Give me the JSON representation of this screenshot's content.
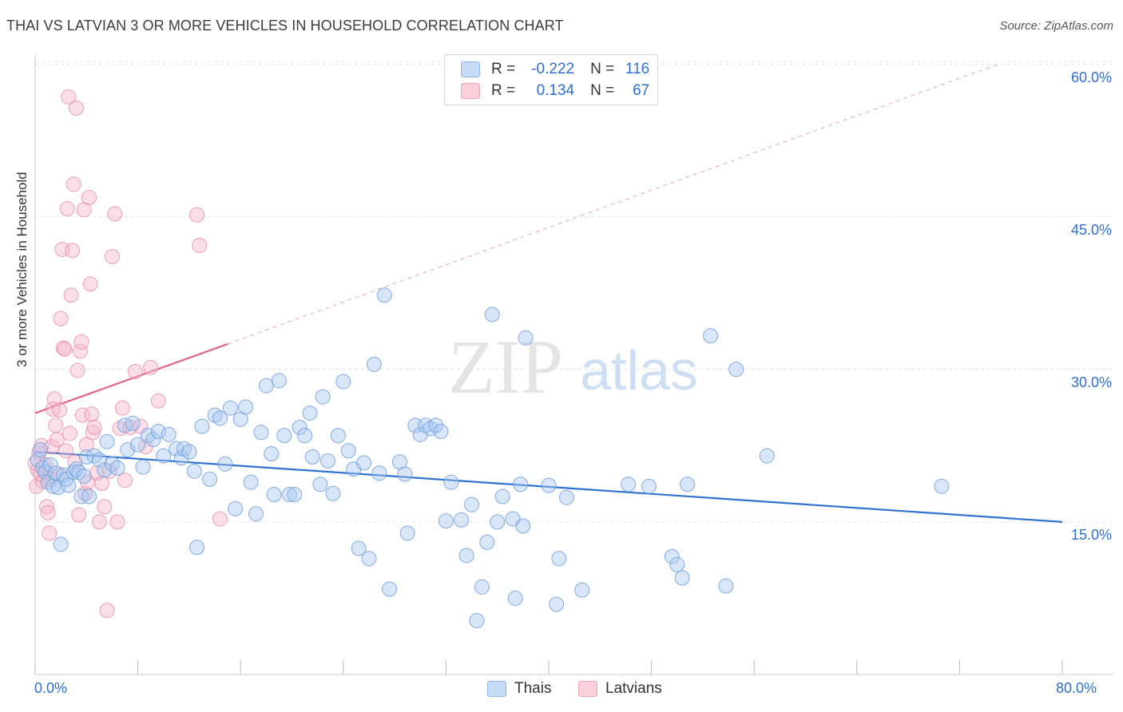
{
  "header": {
    "title": "THAI VS LATVIAN 3 OR MORE VEHICLES IN HOUSEHOLD CORRELATION CHART",
    "source": "Source: ZipAtlas.com"
  },
  "watermark": {
    "zip": "ZIP",
    "atlas": "atlas"
  },
  "legend_top": {
    "rows": [
      {
        "r_label": "R =",
        "r_value": "-0.222",
        "n_label": "N =",
        "n_value": "116",
        "color": "#a8c8f0"
      },
      {
        "r_label": "R =",
        "r_value": "0.134",
        "n_label": "N =",
        "n_value": "67",
        "color": "#f5b8cb"
      }
    ]
  },
  "legend_bottom": {
    "thais": "Thais",
    "latvians": "Latvians"
  },
  "colors": {
    "thai_fill": "#a8c8f0",
    "thai_stroke": "#6f9fdc",
    "thai_line": "#2f72d0",
    "latvian_fill": "#f5b8cb",
    "latvian_stroke": "#e88aa8",
    "latvian_line": "#e0638a",
    "grid": "#e2e2e2",
    "axis_text": "#2f6fd1"
  },
  "chart_data": {
    "type": "scatter",
    "title": "THAI VS LATVIAN 3 OR MORE VEHICLES IN HOUSEHOLD CORRELATION CHART",
    "ylabel": "3 or more Vehicles in Household",
    "xlabel": "",
    "xlim": [
      0,
      80
    ],
    "ylim": [
      0,
      63
    ],
    "x_tick_labels": [
      "0.0%",
      "80.0%"
    ],
    "y_ticks": [
      15,
      30,
      45,
      60
    ],
    "y_tick_labels": [
      "15.0%",
      "30.0%",
      "45.0%",
      "60.0%"
    ],
    "grid": true,
    "legend_position": "bottom",
    "series": [
      {
        "name": "Thais",
        "r": -0.222,
        "n": 116,
        "trend": {
          "x": [
            0,
            80
          ],
          "y": [
            21.9,
            15.0
          ],
          "style": "solid"
        },
        "points": [
          [
            0.2,
            21.1
          ],
          [
            0.4,
            22.1
          ],
          [
            0.6,
            20.3
          ],
          [
            0.8,
            19.9
          ],
          [
            1.0,
            18.9
          ],
          [
            1.2,
            20.6
          ],
          [
            1.4,
            18.5
          ],
          [
            1.6,
            19.8
          ],
          [
            1.8,
            18.4
          ],
          [
            2.0,
            12.8
          ],
          [
            2.2,
            19.6
          ],
          [
            2.4,
            19.2
          ],
          [
            2.6,
            18.6
          ],
          [
            3.0,
            19.9
          ],
          [
            3.2,
            20.2
          ],
          [
            3.4,
            19.9
          ],
          [
            3.6,
            17.5
          ],
          [
            3.8,
            19.5
          ],
          [
            4.0,
            21.4
          ],
          [
            4.2,
            17.5
          ],
          [
            4.6,
            21.5
          ],
          [
            5.0,
            21.1
          ],
          [
            5.4,
            20.1
          ],
          [
            5.6,
            22.9
          ],
          [
            6.0,
            20.7
          ],
          [
            6.4,
            20.3
          ],
          [
            7.0,
            24.5
          ],
          [
            7.2,
            22.1
          ],
          [
            7.6,
            24.7
          ],
          [
            8.0,
            22.6
          ],
          [
            8.4,
            20.4
          ],
          [
            8.8,
            23.5
          ],
          [
            9.2,
            23.1
          ],
          [
            9.6,
            23.9
          ],
          [
            10.0,
            21.5
          ],
          [
            10.4,
            23.6
          ],
          [
            11.0,
            22.2
          ],
          [
            11.4,
            21.3
          ],
          [
            11.6,
            22.2
          ],
          [
            12.0,
            21.9
          ],
          [
            12.4,
            20.0
          ],
          [
            12.6,
            12.5
          ],
          [
            13.0,
            24.4
          ],
          [
            13.6,
            19.2
          ],
          [
            14.0,
            25.5
          ],
          [
            14.4,
            25.2
          ],
          [
            14.8,
            20.7
          ],
          [
            15.2,
            26.2
          ],
          [
            15.6,
            16.3
          ],
          [
            16.0,
            25.1
          ],
          [
            16.4,
            26.3
          ],
          [
            16.8,
            18.9
          ],
          [
            17.2,
            15.8
          ],
          [
            17.6,
            23.8
          ],
          [
            18.0,
            28.4
          ],
          [
            18.4,
            21.7
          ],
          [
            18.6,
            17.7
          ],
          [
            19.0,
            28.9
          ],
          [
            19.4,
            23.5
          ],
          [
            19.8,
            17.7
          ],
          [
            20.2,
            17.7
          ],
          [
            20.6,
            24.3
          ],
          [
            21.0,
            23.5
          ],
          [
            21.4,
            25.7
          ],
          [
            21.6,
            21.4
          ],
          [
            22.2,
            18.7
          ],
          [
            22.4,
            27.3
          ],
          [
            22.8,
            21.0
          ],
          [
            23.2,
            17.8
          ],
          [
            23.6,
            23.5
          ],
          [
            24.0,
            28.8
          ],
          [
            24.4,
            22.0
          ],
          [
            24.8,
            20.2
          ],
          [
            25.2,
            12.4
          ],
          [
            25.6,
            20.8
          ],
          [
            26.0,
            11.4
          ],
          [
            26.4,
            30.5
          ],
          [
            26.8,
            19.8
          ],
          [
            27.2,
            37.3
          ],
          [
            27.6,
            8.4
          ],
          [
            28.4,
            20.9
          ],
          [
            28.8,
            19.7
          ],
          [
            29.0,
            13.9
          ],
          [
            29.6,
            24.5
          ],
          [
            30.0,
            23.6
          ],
          [
            30.4,
            24.5
          ],
          [
            30.8,
            24.2
          ],
          [
            31.2,
            24.5
          ],
          [
            31.6,
            23.9
          ],
          [
            32.0,
            15.1
          ],
          [
            32.4,
            18.9
          ],
          [
            33.2,
            15.2
          ],
          [
            33.6,
            11.7
          ],
          [
            34.0,
            16.7
          ],
          [
            34.4,
            5.3
          ],
          [
            34.8,
            8.6
          ],
          [
            35.2,
            13.0
          ],
          [
            35.6,
            35.4
          ],
          [
            36.0,
            15.0
          ],
          [
            36.4,
            17.5
          ],
          [
            37.2,
            15.3
          ],
          [
            37.4,
            7.5
          ],
          [
            37.8,
            18.7
          ],
          [
            38.0,
            14.6
          ],
          [
            38.2,
            33.1
          ],
          [
            40.0,
            18.6
          ],
          [
            40.6,
            6.9
          ],
          [
            40.8,
            11.4
          ],
          [
            41.4,
            17.4
          ],
          [
            42.6,
            8.3
          ],
          [
            46.2,
            18.7
          ],
          [
            47.8,
            18.5
          ],
          [
            49.6,
            11.6
          ],
          [
            50.0,
            10.8
          ],
          [
            50.4,
            9.5
          ],
          [
            50.8,
            18.7
          ],
          [
            52.6,
            33.3
          ],
          [
            53.8,
            8.7
          ],
          [
            54.6,
            30.0
          ],
          [
            57.0,
            21.5
          ],
          [
            70.6,
            18.5
          ]
        ]
      },
      {
        "name": "Latvians",
        "r": 0.134,
        "n": 67,
        "trend": {
          "x": [
            0,
            15
          ],
          "y": [
            25.7,
            32.5
          ],
          "extended_x": [
            15,
            75
          ],
          "extended_y": [
            32.5,
            60.0
          ],
          "style": "solid+dashed"
        },
        "points": [
          [
            0.1,
            18.5
          ],
          [
            0.2,
            20.1
          ],
          [
            0.3,
            21.8
          ],
          [
            0.4,
            19.7
          ],
          [
            0.5,
            22.5
          ],
          [
            0.6,
            19.0
          ],
          [
            0.8,
            20.6
          ],
          [
            0.9,
            16.5
          ],
          [
            1.0,
            15.9
          ],
          [
            1.1,
            13.9
          ],
          [
            1.2,
            19.2
          ],
          [
            1.3,
            22.4
          ],
          [
            1.4,
            26.1
          ],
          [
            1.5,
            27.1
          ],
          [
            1.6,
            24.5
          ],
          [
            1.7,
            23.1
          ],
          [
            1.8,
            19.7
          ],
          [
            1.9,
            26.0
          ],
          [
            2.0,
            35.0
          ],
          [
            2.1,
            41.8
          ],
          [
            2.2,
            32.1
          ],
          [
            2.3,
            32.0
          ],
          [
            2.4,
            22.0
          ],
          [
            2.5,
            45.8
          ],
          [
            2.6,
            56.8
          ],
          [
            2.7,
            23.7
          ],
          [
            2.8,
            37.3
          ],
          [
            2.9,
            41.7
          ],
          [
            3.0,
            48.2
          ],
          [
            3.1,
            20.9
          ],
          [
            3.2,
            55.7
          ],
          [
            3.3,
            29.9
          ],
          [
            3.4,
            15.7
          ],
          [
            3.5,
            31.8
          ],
          [
            3.6,
            32.7
          ],
          [
            3.7,
            25.5
          ],
          [
            3.8,
            45.7
          ],
          [
            3.9,
            17.8
          ],
          [
            4.0,
            22.6
          ],
          [
            4.1,
            18.9
          ],
          [
            4.2,
            46.9
          ],
          [
            4.3,
            38.4
          ],
          [
            4.4,
            25.6
          ],
          [
            4.5,
            23.8
          ],
          [
            4.6,
            24.3
          ],
          [
            4.8,
            19.8
          ],
          [
            5.0,
            15.0
          ],
          [
            5.2,
            18.8
          ],
          [
            5.4,
            16.5
          ],
          [
            5.6,
            6.3
          ],
          [
            5.8,
            20.0
          ],
          [
            6.0,
            41.1
          ],
          [
            6.2,
            45.3
          ],
          [
            6.4,
            15.0
          ],
          [
            6.6,
            24.2
          ],
          [
            6.8,
            26.2
          ],
          [
            7.0,
            19.1
          ],
          [
            7.4,
            24.3
          ],
          [
            7.8,
            29.8
          ],
          [
            8.2,
            24.4
          ],
          [
            8.6,
            22.4
          ],
          [
            9.0,
            30.2
          ],
          [
            9.6,
            26.9
          ],
          [
            12.6,
            45.2
          ],
          [
            12.8,
            42.2
          ],
          [
            14.4,
            15.3
          ],
          [
            0.0,
            20.8
          ]
        ]
      }
    ]
  }
}
